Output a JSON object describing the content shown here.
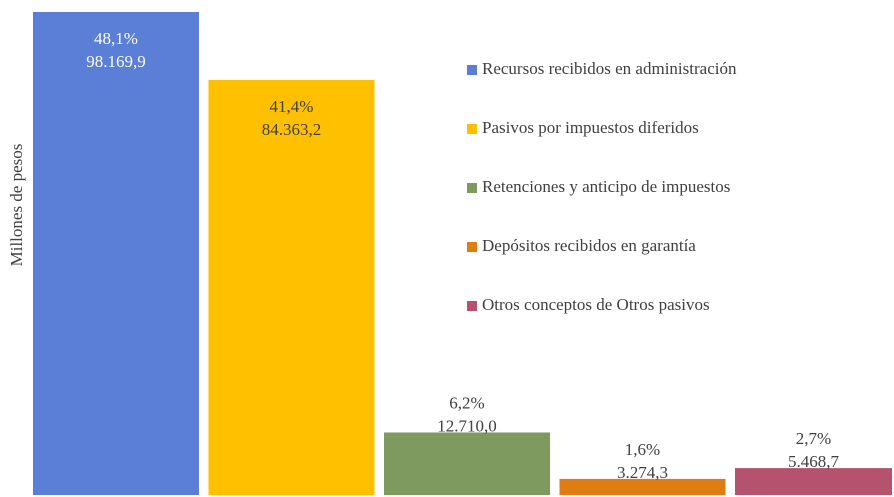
{
  "chart_data": {
    "type": "bar",
    "y_label": "Millones de pesos",
    "categories": [
      "Recursos recibidos en administración",
      "Pasivos por impuestos diferidos",
      "Retenciones y anticipo de impuestos",
      "Depósitos recibidos en garantía",
      "Otros conceptos de Otros pasivos"
    ],
    "colors": [
      "#5b7fd6",
      "#ffc000",
      "#7f9a5e",
      "#e07d12",
      "#b5536f"
    ],
    "values": [
      98169.9,
      84363.2,
      12710.0,
      3274.3,
      5468.7
    ],
    "value_labels": [
      "98.169,9",
      "84.363,2",
      "12.710,0",
      "3.274,3",
      "5.468,7"
    ],
    "shares": [
      48.1,
      41.4,
      6.2,
      1.6,
      2.7
    ],
    "share_labels": [
      "48,1%",
      "41,4%",
      "6,2%",
      "1,6%",
      "2,7%"
    ],
    "ylim": [
      0,
      100000
    ],
    "legend": "right"
  }
}
